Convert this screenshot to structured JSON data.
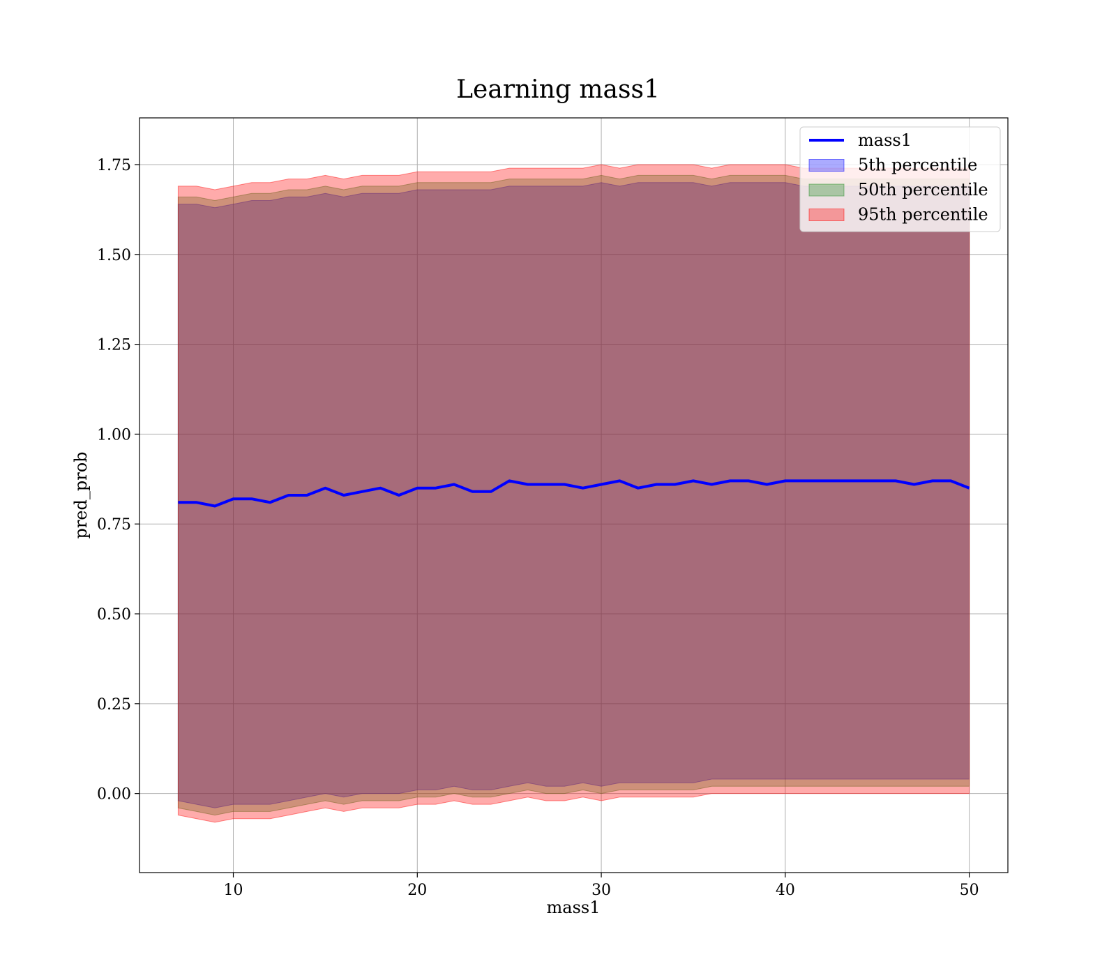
{
  "chart_data": {
    "type": "line",
    "title": "Learning mass1",
    "xlabel": "mass1",
    "ylabel": "pred_prob",
    "xlim": [
      4.9,
      52.1
    ],
    "ylim": [
      -0.22,
      1.88
    ],
    "xticks": [
      10,
      20,
      30,
      40,
      50
    ],
    "xtick_labels": [
      "10",
      "20",
      "30",
      "40",
      "50"
    ],
    "yticks": [
      0.0,
      0.25,
      0.5,
      0.75,
      1.0,
      1.25,
      1.5,
      1.75
    ],
    "ytick_labels": [
      "0.00",
      "0.25",
      "0.50",
      "0.75",
      "1.00",
      "1.25",
      "1.50",
      "1.75"
    ],
    "grid": true,
    "legend_position": "top-right",
    "x": [
      7,
      8,
      9,
      10,
      11,
      12,
      13,
      14,
      15,
      16,
      17,
      18,
      19,
      20,
      21,
      22,
      23,
      24,
      25,
      26,
      27,
      28,
      29,
      30,
      31,
      32,
      33,
      34,
      35,
      36,
      37,
      38,
      39,
      40,
      41,
      42,
      43,
      44,
      45,
      46,
      47,
      48,
      49,
      50
    ],
    "series": [
      {
        "name": "mass1",
        "kind": "line",
        "color": "#0000ff",
        "values": [
          0.81,
          0.81,
          0.8,
          0.82,
          0.82,
          0.81,
          0.83,
          0.83,
          0.85,
          0.83,
          0.84,
          0.85,
          0.83,
          0.85,
          0.85,
          0.86,
          0.84,
          0.84,
          0.87,
          0.86,
          0.86,
          0.86,
          0.85,
          0.86,
          0.87,
          0.85,
          0.86,
          0.86,
          0.87,
          0.86,
          0.87,
          0.87,
          0.86,
          0.87,
          0.87,
          0.87,
          0.87,
          0.87,
          0.87,
          0.87,
          0.86,
          0.87,
          0.87,
          0.85
        ]
      },
      {
        "name": "5th percentile",
        "kind": "band",
        "color": "#0000ff",
        "lower": [
          -0.02,
          -0.03,
          -0.04,
          -0.03,
          -0.03,
          -0.03,
          -0.02,
          -0.01,
          0.0,
          -0.01,
          0.0,
          0.0,
          0.0,
          0.01,
          0.01,
          0.02,
          0.01,
          0.01,
          0.02,
          0.03,
          0.02,
          0.02,
          0.03,
          0.02,
          0.03,
          0.03,
          0.03,
          0.03,
          0.03,
          0.04,
          0.04,
          0.04,
          0.04,
          0.04,
          0.04,
          0.04,
          0.04,
          0.04,
          0.04,
          0.04,
          0.04,
          0.04,
          0.04,
          0.04
        ],
        "upper": [
          1.64,
          1.64,
          1.63,
          1.64,
          1.65,
          1.65,
          1.66,
          1.66,
          1.67,
          1.66,
          1.67,
          1.67,
          1.67,
          1.68,
          1.68,
          1.68,
          1.68,
          1.68,
          1.69,
          1.69,
          1.69,
          1.69,
          1.69,
          1.7,
          1.69,
          1.7,
          1.7,
          1.7,
          1.7,
          1.69,
          1.7,
          1.7,
          1.7,
          1.7,
          1.69,
          1.69,
          1.69,
          1.69,
          1.69,
          1.69,
          1.69,
          1.69,
          1.69,
          1.69
        ]
      },
      {
        "name": "50th percentile",
        "kind": "band",
        "color": "#228b22",
        "lower": [
          -0.04,
          -0.05,
          -0.06,
          -0.05,
          -0.05,
          -0.05,
          -0.04,
          -0.03,
          -0.02,
          -0.03,
          -0.02,
          -0.02,
          -0.02,
          -0.01,
          -0.01,
          0.0,
          -0.01,
          -0.01,
          0.0,
          0.01,
          0.0,
          0.0,
          0.01,
          0.0,
          0.01,
          0.01,
          0.01,
          0.01,
          0.01,
          0.02,
          0.02,
          0.02,
          0.02,
          0.02,
          0.02,
          0.02,
          0.02,
          0.02,
          0.02,
          0.02,
          0.02,
          0.02,
          0.02,
          0.02
        ],
        "upper": [
          1.66,
          1.66,
          1.65,
          1.66,
          1.67,
          1.67,
          1.68,
          1.68,
          1.69,
          1.68,
          1.69,
          1.69,
          1.69,
          1.7,
          1.7,
          1.7,
          1.7,
          1.7,
          1.71,
          1.71,
          1.71,
          1.71,
          1.71,
          1.72,
          1.71,
          1.72,
          1.72,
          1.72,
          1.72,
          1.71,
          1.72,
          1.72,
          1.72,
          1.72,
          1.71,
          1.71,
          1.71,
          1.71,
          1.71,
          1.71,
          1.71,
          1.71,
          1.71,
          1.71
        ]
      },
      {
        "name": "95th percentile",
        "kind": "band",
        "color": "#ff0000",
        "lower": [
          -0.06,
          -0.07,
          -0.08,
          -0.07,
          -0.07,
          -0.07,
          -0.06,
          -0.05,
          -0.04,
          -0.05,
          -0.04,
          -0.04,
          -0.04,
          -0.03,
          -0.03,
          -0.02,
          -0.03,
          -0.03,
          -0.02,
          -0.01,
          -0.02,
          -0.02,
          -0.01,
          -0.02,
          -0.01,
          -0.01,
          -0.01,
          -0.01,
          -0.01,
          0.0,
          0.0,
          0.0,
          0.0,
          0.0,
          0.0,
          0.0,
          0.0,
          0.0,
          0.0,
          0.0,
          0.0,
          0.0,
          0.0,
          0.0
        ],
        "upper": [
          1.69,
          1.69,
          1.68,
          1.69,
          1.7,
          1.7,
          1.71,
          1.71,
          1.72,
          1.71,
          1.72,
          1.72,
          1.72,
          1.73,
          1.73,
          1.73,
          1.73,
          1.73,
          1.74,
          1.74,
          1.74,
          1.74,
          1.74,
          1.75,
          1.74,
          1.75,
          1.75,
          1.75,
          1.75,
          1.74,
          1.75,
          1.75,
          1.75,
          1.75,
          1.74,
          1.74,
          1.74,
          1.74,
          1.74,
          1.74,
          1.74,
          1.74,
          1.74,
          1.74
        ]
      }
    ]
  }
}
